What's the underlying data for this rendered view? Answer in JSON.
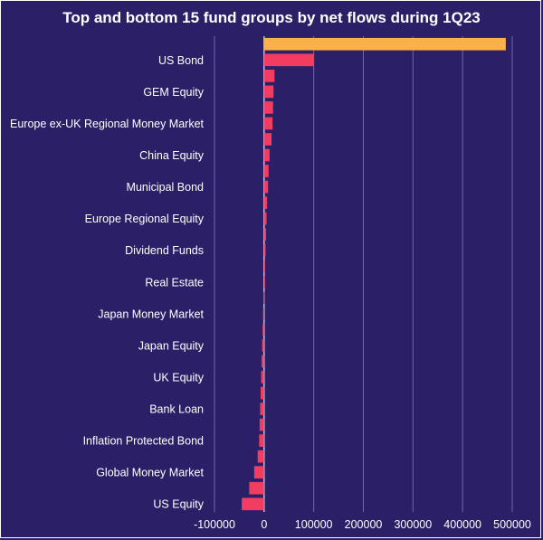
{
  "chart_data": {
    "type": "bar",
    "orientation": "horizontal",
    "title": "Top and bottom 15 fund groups by net flows during 1Q23",
    "xlabel": "",
    "ylabel": "",
    "xlim": [
      -100000,
      500000
    ],
    "x_ticks": [
      "-100000",
      "0",
      "100000",
      "200000",
      "300000",
      "400000",
      "500000"
    ],
    "grid": "vertical",
    "legend": "none",
    "colors": {
      "background": "#2b2068",
      "highlight": "#fbb04a",
      "bar": "#f23d60",
      "grid": "#6f68a6",
      "text": "#ffffff"
    },
    "categories": [
      "",
      "US Bond",
      "",
      "GEM Equity",
      "",
      "Europe ex-UK Regional Money Market",
      "",
      "China Equity",
      "",
      "Municipal Bond",
      "",
      "Europe Regional Equity",
      "",
      "Dividend Funds",
      "",
      "Real Estate",
      "",
      "Japan Money Market",
      "",
      "Japan Equity",
      "",
      "UK Equity",
      "",
      "Bank Loan",
      "",
      "Inflation Protected Bond",
      "",
      "Global Money Market",
      "",
      "US Equity"
    ],
    "values": [
      487000,
      100000,
      21000,
      19000,
      18000,
      17000,
      15000,
      11000,
      9000,
      8000,
      6000,
      5000,
      4000,
      3000,
      2000,
      1000,
      -1000,
      -2000,
      -3000,
      -4000,
      -5000,
      -6000,
      -7000,
      -8000,
      -9000,
      -10000,
      -13000,
      -20000,
      -30000,
      -45000
    ],
    "highlight_index": 0
  }
}
